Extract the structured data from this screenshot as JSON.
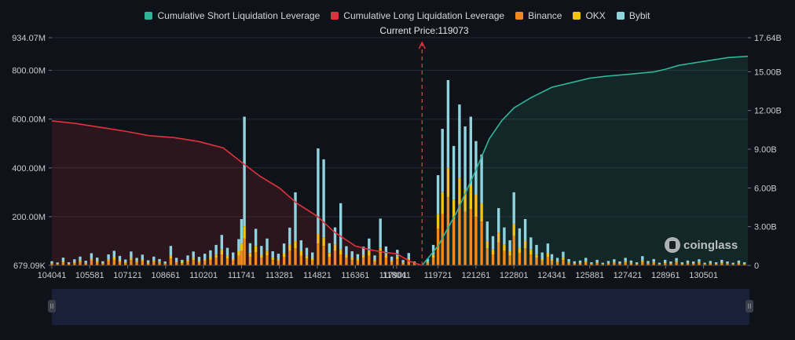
{
  "chart_data": {
    "type": "bar",
    "legend": [
      {
        "name": "Cumulative Short Liquidation Leverage",
        "color": "#2fb597"
      },
      {
        "name": "Cumulative Long Liquidation Leverage",
        "color": "#e0323e"
      },
      {
        "name": "Binance",
        "color": "#f0891e"
      },
      {
        "name": "OKX",
        "color": "#f2c21b"
      },
      {
        "name": "Bybit",
        "color": "#8fd3df"
      }
    ],
    "current_price_label": "Current Price:119073",
    "current_price": 119073,
    "x_range": [
      104041,
      132300
    ],
    "x_ticks": [
      "104041",
      "105581",
      "107121",
      "108661",
      "110201",
      "111741",
      "113281",
      "114821",
      "116361",
      "117901",
      "118041",
      "119721",
      "121261",
      "122801",
      "124341",
      "125881",
      "127421",
      "128961",
      "130501"
    ],
    "y_left_ticks": [
      "934.07M",
      "800.00M",
      "600.00M",
      "400.00M",
      "200.00M",
      "679.09K"
    ],
    "y_left_ticks_values": [
      934.07,
      800,
      600,
      400,
      200,
      0.679
    ],
    "y_left_range": [
      0,
      934.07
    ],
    "y_left_unit": "M",
    "y_right_ticks": [
      "17.64B",
      "15.00B",
      "12.00B",
      "9.00B",
      "6.00B",
      "3.00B",
      "0"
    ],
    "y_right_ticks_values": [
      17.64,
      15,
      12,
      9,
      6,
      3,
      0
    ],
    "y_right_range": [
      0,
      17.64
    ],
    "y_right_unit": "B",
    "long_cumulative": {
      "x": [
        104041,
        105000,
        106000,
        107000,
        108000,
        109000,
        110000,
        111000,
        111741,
        112500,
        113281,
        114000,
        114821,
        115500,
        116361,
        117000,
        117600,
        118041,
        118600,
        119073
      ],
      "y": [
        11.2,
        11.0,
        10.7,
        10.4,
        10.05,
        9.9,
        9.6,
        9.1,
        8.0,
        6.9,
        6.0,
        4.8,
        3.8,
        2.6,
        1.5,
        1.2,
        1.0,
        0.9,
        0.3,
        0
      ]
    },
    "short_cumulative": {
      "x": [
        119073,
        119721,
        120500,
        121261,
        121800,
        122300,
        122801,
        123500,
        124341,
        125000,
        125881,
        126500,
        127421,
        128500,
        128961,
        129500,
        130501,
        131500,
        132300
      ],
      "y": [
        0,
        1.5,
        4.2,
        7.4,
        9.8,
        11.2,
        12.2,
        13.0,
        13.8,
        14.1,
        14.5,
        14.65,
        14.8,
        15.0,
        15.2,
        15.5,
        15.8,
        16.1,
        16.2
      ]
    },
    "bars": [
      {
        "x": 104041,
        "binance": 6,
        "okx": 3,
        "bybit": 8
      },
      {
        "x": 104270,
        "binance": 4,
        "okx": 2,
        "bybit": 6
      },
      {
        "x": 104500,
        "binance": 12,
        "okx": 5,
        "bybit": 15
      },
      {
        "x": 104730,
        "binance": 5,
        "okx": 2,
        "bybit": 6
      },
      {
        "x": 104960,
        "binance": 9,
        "okx": 4,
        "bybit": 12
      },
      {
        "x": 105190,
        "binance": 14,
        "okx": 6,
        "bybit": 16
      },
      {
        "x": 105420,
        "binance": 7,
        "okx": 3,
        "bybit": 9
      },
      {
        "x": 105650,
        "binance": 20,
        "okx": 8,
        "bybit": 22
      },
      {
        "x": 105880,
        "binance": 13,
        "okx": 5,
        "bybit": 14
      },
      {
        "x": 106110,
        "binance": 6,
        "okx": 3,
        "bybit": 8
      },
      {
        "x": 106340,
        "binance": 18,
        "okx": 7,
        "bybit": 20
      },
      {
        "x": 106570,
        "binance": 24,
        "okx": 10,
        "bybit": 26
      },
      {
        "x": 106800,
        "binance": 15,
        "okx": 6,
        "bybit": 18
      },
      {
        "x": 107030,
        "binance": 9,
        "okx": 4,
        "bybit": 11
      },
      {
        "x": 107260,
        "binance": 22,
        "okx": 9,
        "bybit": 26
      },
      {
        "x": 107490,
        "binance": 12,
        "okx": 5,
        "bybit": 14
      },
      {
        "x": 107720,
        "binance": 17,
        "okx": 7,
        "bybit": 20
      },
      {
        "x": 107950,
        "binance": 8,
        "okx": 3,
        "bybit": 10
      },
      {
        "x": 108180,
        "binance": 14,
        "okx": 6,
        "bybit": 16
      },
      {
        "x": 108410,
        "binance": 10,
        "okx": 4,
        "bybit": 12
      },
      {
        "x": 108640,
        "binance": 6,
        "okx": 3,
        "bybit": 7
      },
      {
        "x": 108870,
        "binance": 28,
        "okx": 12,
        "bybit": 40
      },
      {
        "x": 109100,
        "binance": 12,
        "okx": 5,
        "bybit": 14
      },
      {
        "x": 109330,
        "binance": 9,
        "okx": 4,
        "bybit": 10
      },
      {
        "x": 109560,
        "binance": 16,
        "okx": 7,
        "bybit": 18
      },
      {
        "x": 109790,
        "binance": 22,
        "okx": 9,
        "bybit": 26
      },
      {
        "x": 110020,
        "binance": 13,
        "okx": 6,
        "bybit": 16
      },
      {
        "x": 110250,
        "binance": 18,
        "okx": 8,
        "bybit": 22
      },
      {
        "x": 110480,
        "binance": 24,
        "okx": 10,
        "bybit": 28
      },
      {
        "x": 110710,
        "binance": 30,
        "okx": 14,
        "bybit": 40
      },
      {
        "x": 110940,
        "binance": 45,
        "okx": 20,
        "bybit": 60
      },
      {
        "x": 111170,
        "binance": 28,
        "okx": 12,
        "bybit": 32
      },
      {
        "x": 111400,
        "binance": 20,
        "okx": 9,
        "bybit": 24
      },
      {
        "x": 111630,
        "binance": 40,
        "okx": 18,
        "bybit": 50
      },
      {
        "x": 111741,
        "binance": 60,
        "okx": 30,
        "bybit": 100
      },
      {
        "x": 111860,
        "binance": 110,
        "okx": 50,
        "bybit": 450
      },
      {
        "x": 112090,
        "binance": 35,
        "okx": 16,
        "bybit": 40
      },
      {
        "x": 112320,
        "binance": 55,
        "okx": 25,
        "bybit": 70
      },
      {
        "x": 112550,
        "binance": 30,
        "okx": 14,
        "bybit": 36
      },
      {
        "x": 112780,
        "binance": 42,
        "okx": 18,
        "bybit": 50
      },
      {
        "x": 113010,
        "binance": 22,
        "okx": 10,
        "bybit": 26
      },
      {
        "x": 113240,
        "binance": 18,
        "okx": 8,
        "bybit": 22
      },
      {
        "x": 113470,
        "binance": 35,
        "okx": 15,
        "bybit": 40
      },
      {
        "x": 113700,
        "binance": 60,
        "okx": 25,
        "bybit": 70
      },
      {
        "x": 113930,
        "binance": 70,
        "okx": 30,
        "bybit": 200
      },
      {
        "x": 114160,
        "binance": 40,
        "okx": 18,
        "bybit": 45
      },
      {
        "x": 114390,
        "binance": 28,
        "okx": 12,
        "bybit": 32
      },
      {
        "x": 114620,
        "binance": 20,
        "okx": 9,
        "bybit": 24
      },
      {
        "x": 114850,
        "binance": 90,
        "okx": 40,
        "bybit": 350
      },
      {
        "x": 115080,
        "binance": 80,
        "okx": 35,
        "bybit": 320
      },
      {
        "x": 115310,
        "binance": 35,
        "okx": 16,
        "bybit": 40
      },
      {
        "x": 115540,
        "binance": 60,
        "okx": 26,
        "bybit": 70
      },
      {
        "x": 115770,
        "binance": 45,
        "okx": 20,
        "bybit": 190
      },
      {
        "x": 116000,
        "binance": 30,
        "okx": 14,
        "bybit": 35
      },
      {
        "x": 116230,
        "binance": 22,
        "okx": 10,
        "bybit": 26
      },
      {
        "x": 116460,
        "binance": 18,
        "okx": 8,
        "bybit": 20
      },
      {
        "x": 116690,
        "binance": 30,
        "okx": 13,
        "bybit": 34
      },
      {
        "x": 116920,
        "binance": 40,
        "okx": 18,
        "bybit": 52
      },
      {
        "x": 117150,
        "binance": 16,
        "okx": 7,
        "bybit": 18
      },
      {
        "x": 117380,
        "binance": 50,
        "okx": 22,
        "bybit": 120
      },
      {
        "x": 117610,
        "binance": 30,
        "okx": 13,
        "bybit": 35
      },
      {
        "x": 117840,
        "binance": 14,
        "okx": 6,
        "bybit": 16
      },
      {
        "x": 118070,
        "binance": 25,
        "okx": 11,
        "bybit": 28
      },
      {
        "x": 118300,
        "binance": 8,
        "okx": 4,
        "bybit": 10
      },
      {
        "x": 118530,
        "binance": 20,
        "okx": 9,
        "bybit": 22
      },
      {
        "x": 118760,
        "binance": 6,
        "okx": 3,
        "bybit": 7
      },
      {
        "x": 119300,
        "binance": 10,
        "okx": 5,
        "bybit": 12
      },
      {
        "x": 119530,
        "binance": 30,
        "okx": 14,
        "bybit": 40
      },
      {
        "x": 119721,
        "binance": 150,
        "okx": 60,
        "bybit": 160
      },
      {
        "x": 119900,
        "binance": 210,
        "okx": 90,
        "bybit": 260
      },
      {
        "x": 120130,
        "binance": 280,
        "okx": 120,
        "bybit": 360
      },
      {
        "x": 120360,
        "binance": 190,
        "okx": 80,
        "bybit": 220
      },
      {
        "x": 120590,
        "binance": 250,
        "okx": 110,
        "bybit": 300
      },
      {
        "x": 120820,
        "binance": 220,
        "okx": 90,
        "bybit": 260
      },
      {
        "x": 121050,
        "binance": 230,
        "okx": 100,
        "bybit": 280
      },
      {
        "x": 121261,
        "binance": 200,
        "okx": 90,
        "bybit": 220
      },
      {
        "x": 121490,
        "binance": 180,
        "okx": 75,
        "bybit": 200
      },
      {
        "x": 121720,
        "binance": 70,
        "okx": 30,
        "bybit": 80
      },
      {
        "x": 121950,
        "binance": 45,
        "okx": 20,
        "bybit": 55
      },
      {
        "x": 122180,
        "binance": 95,
        "okx": 40,
        "bybit": 100
      },
      {
        "x": 122410,
        "binance": 60,
        "okx": 26,
        "bybit": 70
      },
      {
        "x": 122640,
        "binance": 40,
        "okx": 18,
        "bybit": 45
      },
      {
        "x": 122801,
        "binance": 120,
        "okx": 50,
        "bybit": 130
      },
      {
        "x": 123030,
        "binance": 50,
        "okx": 22,
        "bybit": 80
      },
      {
        "x": 123260,
        "binance": 70,
        "okx": 30,
        "bybit": 90
      },
      {
        "x": 123490,
        "binance": 45,
        "okx": 20,
        "bybit": 50
      },
      {
        "x": 123720,
        "binance": 30,
        "okx": 14,
        "bybit": 40
      },
      {
        "x": 123950,
        "binance": 20,
        "okx": 9,
        "bybit": 24
      },
      {
        "x": 124180,
        "binance": 35,
        "okx": 15,
        "bybit": 40
      },
      {
        "x": 124341,
        "binance": 18,
        "okx": 8,
        "bybit": 20
      },
      {
        "x": 124570,
        "binance": 12,
        "okx": 5,
        "bybit": 14
      },
      {
        "x": 124800,
        "binance": 22,
        "okx": 10,
        "bybit": 24
      },
      {
        "x": 125030,
        "binance": 10,
        "okx": 4,
        "bybit": 12
      },
      {
        "x": 125260,
        "binance": 6,
        "okx": 3,
        "bybit": 8
      },
      {
        "x": 125490,
        "binance": 8,
        "okx": 3,
        "bybit": 9
      },
      {
        "x": 125720,
        "binance": 12,
        "okx": 5,
        "bybit": 14
      },
      {
        "x": 125950,
        "binance": 5,
        "okx": 2,
        "bybit": 6
      },
      {
        "x": 126180,
        "binance": 9,
        "okx": 4,
        "bybit": 10
      },
      {
        "x": 126410,
        "binance": 4,
        "okx": 2,
        "bybit": 5
      },
      {
        "x": 126640,
        "binance": 7,
        "okx": 3,
        "bybit": 8
      },
      {
        "x": 126870,
        "binance": 10,
        "okx": 4,
        "bybit": 11
      },
      {
        "x": 127100,
        "binance": 6,
        "okx": 3,
        "bybit": 7
      },
      {
        "x": 127330,
        "binance": 12,
        "okx": 5,
        "bybit": 14
      },
      {
        "x": 127560,
        "binance": 8,
        "okx": 3,
        "bybit": 9
      },
      {
        "x": 127790,
        "binance": 5,
        "okx": 2,
        "bybit": 6
      },
      {
        "x": 128020,
        "binance": 14,
        "okx": 6,
        "bybit": 18
      },
      {
        "x": 128250,
        "binance": 7,
        "okx": 3,
        "bybit": 8
      },
      {
        "x": 128480,
        "binance": 10,
        "okx": 4,
        "bybit": 12
      },
      {
        "x": 128710,
        "binance": 4,
        "okx": 2,
        "bybit": 5
      },
      {
        "x": 128940,
        "binance": 9,
        "okx": 4,
        "bybit": 10
      },
      {
        "x": 129170,
        "binance": 6,
        "okx": 3,
        "bybit": 7
      },
      {
        "x": 129400,
        "binance": 12,
        "okx": 5,
        "bybit": 13
      },
      {
        "x": 129630,
        "binance": 5,
        "okx": 2,
        "bybit": 6
      },
      {
        "x": 129860,
        "binance": 8,
        "okx": 3,
        "bybit": 9
      },
      {
        "x": 130090,
        "binance": 6,
        "okx": 3,
        "bybit": 7
      },
      {
        "x": 130320,
        "binance": 10,
        "okx": 4,
        "bybit": 11
      },
      {
        "x": 130550,
        "binance": 4,
        "okx": 2,
        "bybit": 5
      },
      {
        "x": 130780,
        "binance": 7,
        "okx": 3,
        "bybit": 8
      },
      {
        "x": 131010,
        "binance": 5,
        "okx": 2,
        "bybit": 6
      },
      {
        "x": 131240,
        "binance": 9,
        "okx": 4,
        "bybit": 10
      },
      {
        "x": 131470,
        "binance": 6,
        "okx": 3,
        "bybit": 7
      },
      {
        "x": 131700,
        "binance": 4,
        "okx": 2,
        "bybit": 5
      },
      {
        "x": 131930,
        "binance": 8,
        "okx": 3,
        "bybit": 9
      },
      {
        "x": 132160,
        "binance": 5,
        "okx": 2,
        "bybit": 6
      }
    ]
  },
  "watermark": "coinglass",
  "scroller": {
    "left_handle": "II",
    "right_handle": "II"
  }
}
